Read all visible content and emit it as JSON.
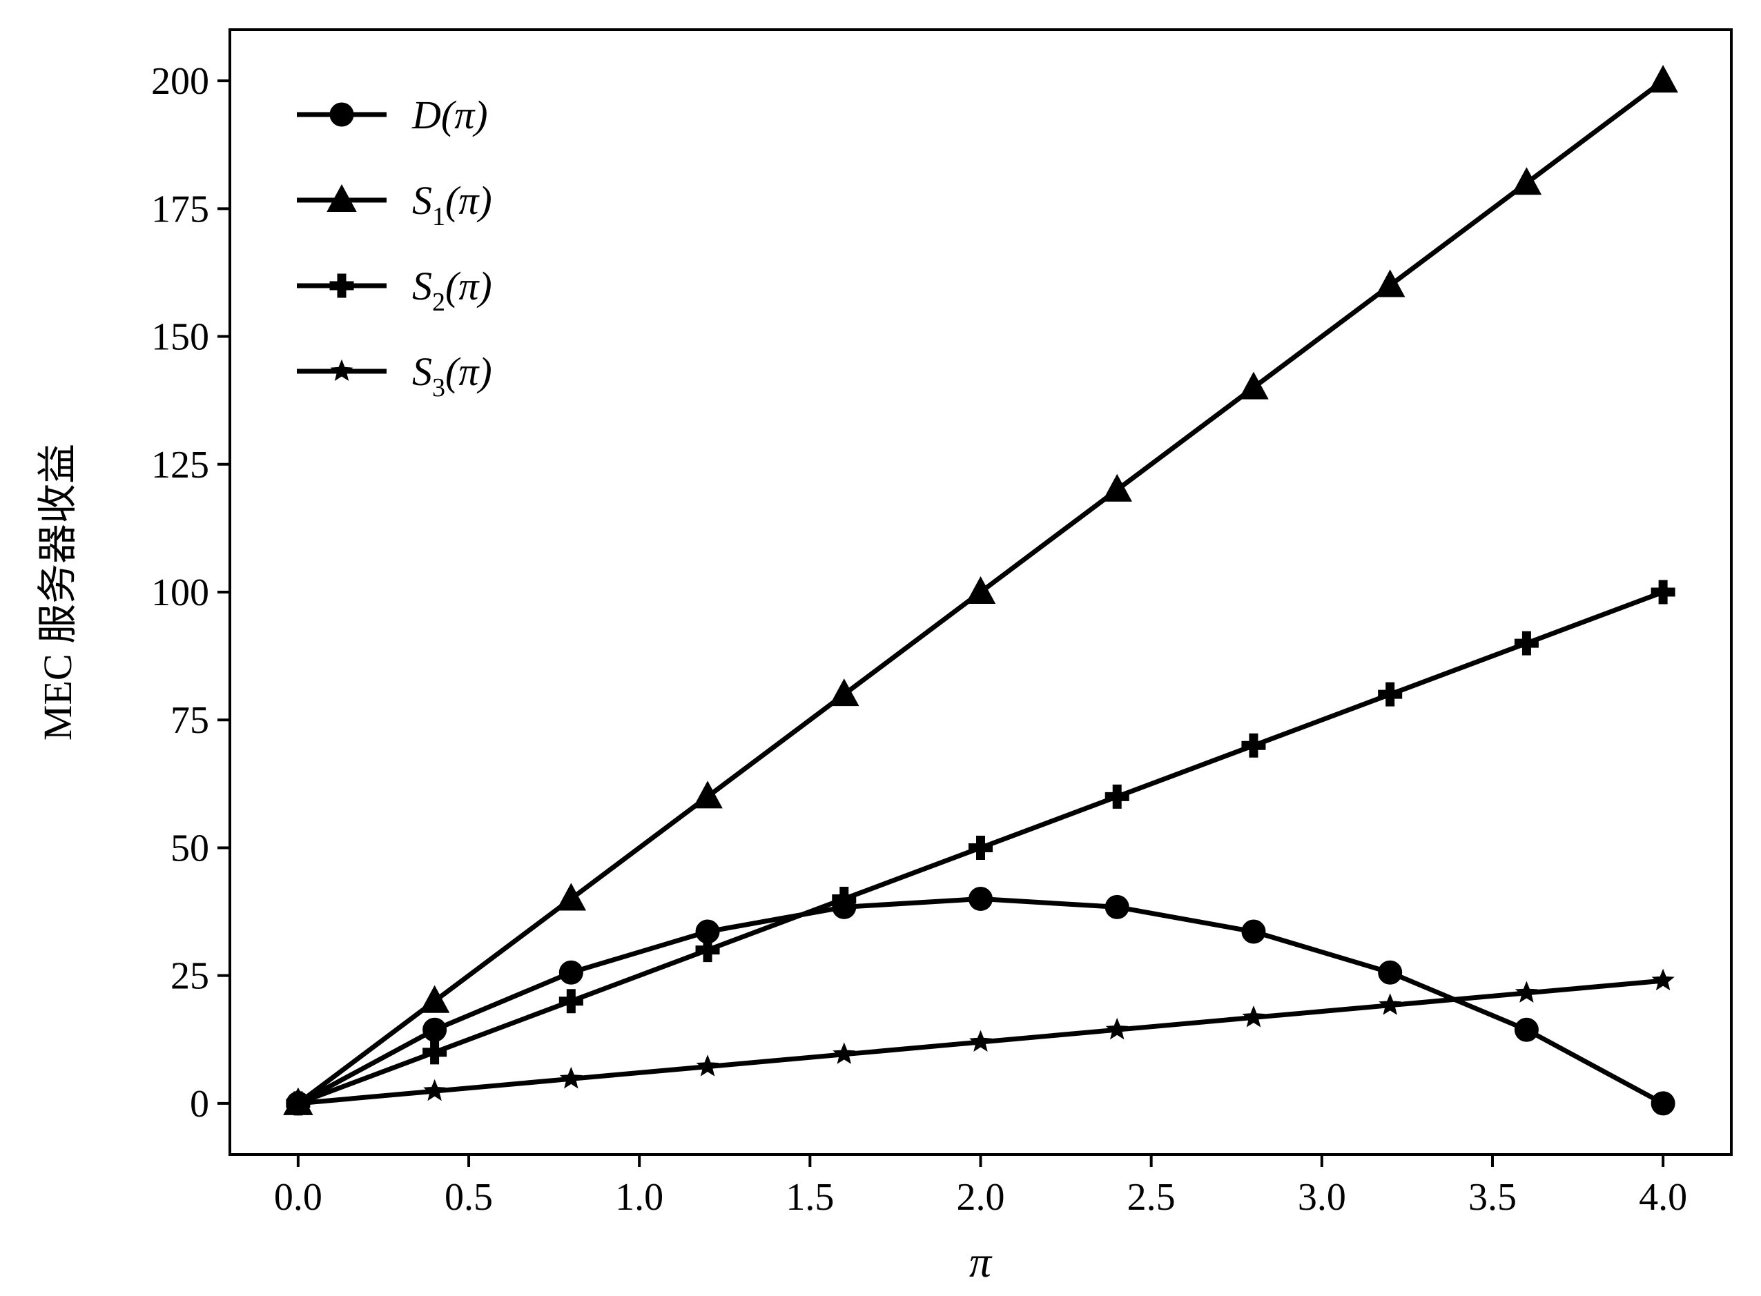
{
  "chart_data": {
    "type": "line",
    "title": "",
    "xlabel": "π",
    "ylabel": "MEC 服务器收益",
    "xlim": [
      -0.2,
      4.2
    ],
    "ylim": [
      -10,
      210
    ],
    "x_ticks": [
      "0.0",
      "0.5",
      "1.0",
      "1.5",
      "2.0",
      "2.5",
      "3.0",
      "3.5",
      "4.0"
    ],
    "y_ticks": [
      "0",
      "25",
      "50",
      "75",
      "100",
      "125",
      "150",
      "175",
      "200"
    ],
    "grid": false,
    "legend_position": "top-left",
    "x": [
      0.0,
      0.4,
      0.8,
      1.2,
      1.6,
      2.0,
      2.4,
      2.8,
      3.2,
      3.6,
      4.0
    ],
    "series": [
      {
        "name": "D(π)",
        "legend_main": "D",
        "legend_sub": "",
        "legend_arg": "(π)",
        "marker": "circle",
        "color": "#000000",
        "values": [
          0,
          14.4,
          25.6,
          33.6,
          38.4,
          40,
          38.4,
          33.6,
          25.6,
          14.4,
          0
        ]
      },
      {
        "name": "S1(π)",
        "legend_main": "S",
        "legend_sub": "1",
        "legend_arg": "(π)",
        "marker": "triangle",
        "color": "#000000",
        "values": [
          0,
          20,
          40,
          60,
          80,
          100,
          120,
          140,
          160,
          180,
          200
        ]
      },
      {
        "name": "S2(π)",
        "legend_main": "S",
        "legend_sub": "2",
        "legend_arg": "(π)",
        "marker": "plus",
        "color": "#000000",
        "values": [
          0,
          10,
          20,
          30,
          40,
          50,
          60,
          70,
          80,
          90,
          100
        ]
      },
      {
        "name": "S3(π)",
        "legend_main": "S",
        "legend_sub": "3",
        "legend_arg": "(π)",
        "marker": "star",
        "color": "#000000",
        "values": [
          0,
          2.4,
          4.8,
          7.2,
          9.6,
          12,
          14.4,
          16.8,
          19.2,
          21.6,
          24
        ]
      }
    ]
  }
}
